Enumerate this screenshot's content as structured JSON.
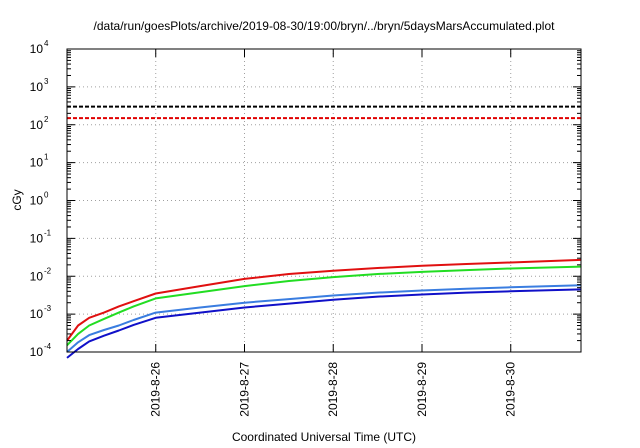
{
  "chart_data": {
    "type": "line",
    "title": "/data/run/goesPlots/archive/2019-08-30/19:00/bryn/../bryn/5daysMarsAccumulated.plot",
    "xlabel": "Coordinated Universal Time (UTC)",
    "ylabel": "cGy",
    "y_scale": "log",
    "ylim": [
      0.0001,
      10000
    ],
    "xlim": [
      "2019-08-25T00:00",
      "2019-08-30T19:00"
    ],
    "x_ticks": [
      "2019-8-26",
      "2019-8-27",
      "2019-8-28",
      "2019-8-29",
      "2019-8-30"
    ],
    "y_ticks": [
      {
        "base": "10",
        "exp": "-4",
        "value": 0.0001
      },
      {
        "base": "10",
        "exp": "-3",
        "value": 0.001
      },
      {
        "base": "10",
        "exp": "-2",
        "value": 0.01
      },
      {
        "base": "10",
        "exp": "-1",
        "value": 0.1
      },
      {
        "base": "10",
        "exp": "0",
        "value": 1
      },
      {
        "base": "10",
        "exp": "1",
        "value": 10
      },
      {
        "base": "10",
        "exp": "2",
        "value": 100
      },
      {
        "base": "10",
        "exp": "3",
        "value": 1000
      },
      {
        "base": "10",
        "exp": "4",
        "value": 10000
      }
    ],
    "grid": true,
    "reference_lines": [
      {
        "value": 300,
        "color": "#000000",
        "style": "dashed"
      },
      {
        "value": 150,
        "color": "#e00000",
        "style": "dashed"
      }
    ],
    "series": [
      {
        "color": "#e01010",
        "x": [
          "2019-08-25T00:00",
          "2019-08-25T03:00",
          "2019-08-25T06:00",
          "2019-08-25T10:00",
          "2019-08-25T14:00",
          "2019-08-25T18:00",
          "2019-08-26T00:00",
          "2019-08-26T12:00",
          "2019-08-27T00:00",
          "2019-08-27T12:00",
          "2019-08-28T00:00",
          "2019-08-28T12:00",
          "2019-08-29T00:00",
          "2019-08-29T12:00",
          "2019-08-30T00:00",
          "2019-08-30T19:00"
        ],
        "values": [
          0.0002,
          0.0005,
          0.0008,
          0.0011,
          0.0016,
          0.0022,
          0.0035,
          0.0055,
          0.0085,
          0.0115,
          0.014,
          0.0165,
          0.019,
          0.021,
          0.023,
          0.027
        ]
      },
      {
        "color": "#22dd22",
        "x": [
          "2019-08-25T00:00",
          "2019-08-25T03:00",
          "2019-08-25T06:00",
          "2019-08-25T10:00",
          "2019-08-25T14:00",
          "2019-08-25T18:00",
          "2019-08-26T00:00",
          "2019-08-26T12:00",
          "2019-08-27T00:00",
          "2019-08-27T12:00",
          "2019-08-28T00:00",
          "2019-08-28T12:00",
          "2019-08-29T00:00",
          "2019-08-29T12:00",
          "2019-08-30T00:00",
          "2019-08-30T19:00"
        ],
        "values": [
          0.00015,
          0.0003,
          0.0005,
          0.00075,
          0.0011,
          0.0016,
          0.0026,
          0.0038,
          0.0055,
          0.0075,
          0.0095,
          0.0115,
          0.013,
          0.0145,
          0.016,
          0.018
        ]
      },
      {
        "color": "#3a7de0",
        "x": [
          "2019-08-25T00:00",
          "2019-08-25T03:00",
          "2019-08-25T06:00",
          "2019-08-25T10:00",
          "2019-08-25T14:00",
          "2019-08-25T18:00",
          "2019-08-26T00:00",
          "2019-08-26T12:00",
          "2019-08-27T00:00",
          "2019-08-27T12:00",
          "2019-08-28T00:00",
          "2019-08-28T12:00",
          "2019-08-29T00:00",
          "2019-08-29T12:00",
          "2019-08-30T00:00",
          "2019-08-30T19:00"
        ],
        "values": [
          0.0001,
          0.00018,
          0.00028,
          0.00038,
          0.0005,
          0.0007,
          0.0011,
          0.0015,
          0.002,
          0.0025,
          0.0031,
          0.0037,
          0.0042,
          0.0047,
          0.0051,
          0.0058
        ]
      },
      {
        "color": "#1010c8",
        "x": [
          "2019-08-25T00:00",
          "2019-08-25T03:00",
          "2019-08-25T06:00",
          "2019-08-25T10:00",
          "2019-08-25T14:00",
          "2019-08-25T18:00",
          "2019-08-26T00:00",
          "2019-08-26T12:00",
          "2019-08-27T00:00",
          "2019-08-27T12:00",
          "2019-08-28T00:00",
          "2019-08-28T12:00",
          "2019-08-29T00:00",
          "2019-08-29T12:00",
          "2019-08-30T00:00",
          "2019-08-30T19:00"
        ],
        "values": [
          7e-05,
          0.00012,
          0.00019,
          0.00027,
          0.00037,
          0.00052,
          0.0008,
          0.0011,
          0.0015,
          0.0019,
          0.0024,
          0.0029,
          0.0033,
          0.0037,
          0.004,
          0.0045
        ]
      }
    ]
  }
}
